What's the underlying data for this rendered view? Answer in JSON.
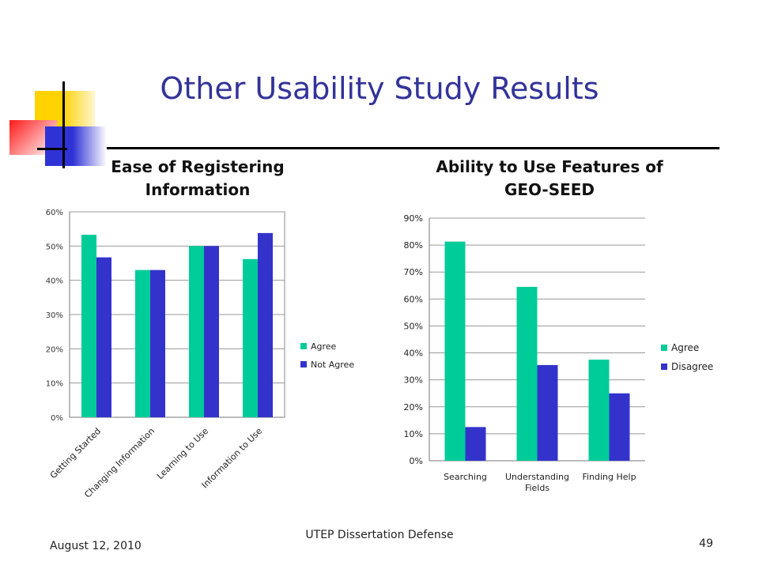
{
  "slide": {
    "title": "Other Usability Study Results",
    "footer_date": "August 12, 2010",
    "footer_center": "UTEP Dissertation Defense",
    "page_number": "49"
  },
  "colors": {
    "title": "#333399",
    "agree": "#00cc99",
    "disagree": "#3333cc"
  },
  "chart_data": [
    {
      "type": "bar",
      "title": "Ease of Registering Information",
      "categories": [
        "Getting Started",
        "Changing Information",
        "Learning to Use",
        "Information to Use"
      ],
      "series": [
        {
          "name": "Agree",
          "values": [
            53.3,
            43,
            50,
            46.2
          ]
        },
        {
          "name": "Not Agree",
          "values": [
            46.7,
            43,
            50,
            53.8
          ]
        }
      ],
      "ylim": [
        0,
        60
      ],
      "yticks": [
        "0%",
        "10%",
        "20%",
        "30%",
        "40%",
        "50%",
        "60%"
      ],
      "grid": true,
      "legend": "right"
    },
    {
      "type": "bar",
      "title": "Ability to Use Features of GEO-SEED",
      "categories": [
        "Searching",
        "Understanding Fields",
        "Finding Help"
      ],
      "series": [
        {
          "name": "Agree",
          "values": [
            81.3,
            64.5,
            37.5
          ]
        },
        {
          "name": "Disagree",
          "values": [
            12.5,
            35.5,
            25
          ]
        }
      ],
      "ylim": [
        0,
        90
      ],
      "yticks": [
        "0%",
        "10%",
        "20%",
        "30%",
        "40%",
        "50%",
        "60%",
        "70%",
        "80%",
        "90%"
      ],
      "grid": true,
      "legend": "right"
    }
  ]
}
